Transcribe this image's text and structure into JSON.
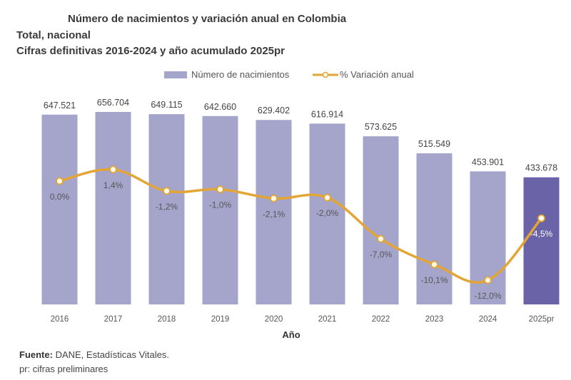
{
  "header": {
    "title": "Número de nacimientos y variación anual en Colombia",
    "subtitle1": "Total, nacional",
    "subtitle2": "Cifras definitivas 2016-2024 y año acumulado 2025pr"
  },
  "footer": {
    "source_label": "Fuente:",
    "source_text": " DANE, Estadísticas Vitales.",
    "note": "pr: cifras preliminares"
  },
  "colors": {
    "bar": "#a5a5cc",
    "bar_highlight": "#6a63a8",
    "line": "#e3a535",
    "marker_fill": "#fffbe8"
  },
  "chart_data": {
    "type": "bar",
    "title": "Número de nacimientos y variación anual en Colombia",
    "xlabel": "Año",
    "ylabel": "",
    "categories": [
      "2016",
      "2017",
      "2018",
      "2019",
      "2020",
      "2021",
      "2022",
      "2023",
      "2024",
      "2025pr"
    ],
    "series": [
      {
        "name": "Número de nacimientos",
        "type": "bar",
        "values": [
          647521,
          656704,
          649115,
          642660,
          629402,
          616914,
          573625,
          515549,
          453901,
          433678
        ],
        "labels": [
          "647.521",
          "656.704",
          "649.115",
          "642.660",
          "629.402",
          "616.914",
          "573.625",
          "515.549",
          "453.901",
          "433.678"
        ]
      },
      {
        "name": "% Variación anual",
        "type": "line",
        "values": [
          0.0,
          1.4,
          -1.2,
          -1.0,
          -2.1,
          -2.0,
          -7.0,
          -10.1,
          -12.0,
          -4.5
        ],
        "labels": [
          "0,0%",
          "1,4%",
          "-1,2%",
          "-1,0%",
          "-2,1%",
          "-2,0%",
          "-7,0%",
          "-10,1%",
          "-12,0%",
          "-4,5%"
        ]
      }
    ],
    "highlighted_category": "2025pr",
    "legend": {
      "position": "top-center",
      "entries": [
        "Número de nacimientos",
        "% Variación anual"
      ]
    },
    "grid": false
  }
}
